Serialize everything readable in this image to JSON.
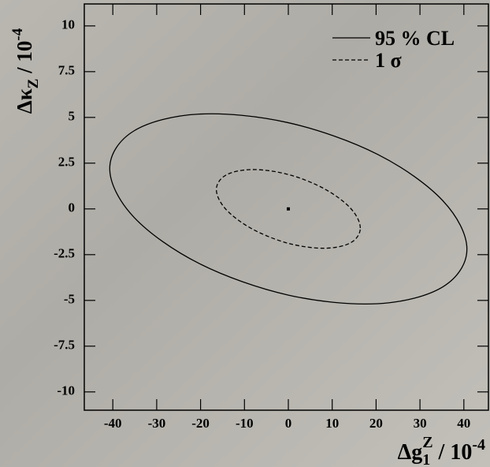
{
  "chart_data": {
    "type": "contour",
    "xlabel": {
      "main": "Δg",
      "sub": "1",
      "sup": "Z",
      "rest": " / 10",
      "sup2": "-4"
    },
    "ylabel": {
      "main": "Δκ",
      "sub": "Z",
      "rest": " / 10",
      "sup": "-4"
    },
    "xlim": [
      -46.5,
      45.6
    ],
    "ylim": [
      -11,
      11.2
    ],
    "xticks": [
      -40,
      -30,
      -20,
      -10,
      0,
      10,
      20,
      30,
      40
    ],
    "yticks": [
      -10,
      -7.5,
      -5,
      -2.5,
      0,
      2.5,
      5,
      7.5,
      10
    ],
    "legend": "top-right",
    "series": [
      {
        "name": "95 % CL",
        "color": "#000000",
        "dash": false,
        "x": [
          40.7,
          35.2,
          20.35,
          0,
          -20.35,
          -35.2,
          -40.7,
          -35.2,
          -20.35,
          0,
          20.35,
          35.2
        ],
        "y": [
          -2.2,
          0.45,
          2.98,
          4.71,
          5.18,
          4.26,
          2.2,
          -0.45,
          -2.98,
          -4.71,
          -5.18,
          -4.26
        ]
      },
      {
        "name": "1 σ",
        "color": "#000000",
        "dash": true,
        "x": [
          16.4,
          14.2,
          8.2,
          0,
          -8.2,
          -14.2,
          -16.4,
          -14.2,
          -8.2,
          0,
          8.2,
          14.2
        ],
        "y": [
          -1.05,
          0.03,
          1.1,
          1.88,
          2.15,
          1.85,
          1.05,
          -0.03,
          -1.1,
          -1.88,
          -2.15,
          -1.85
        ]
      }
    ],
    "center": {
      "x": 0,
      "y": 0
    }
  }
}
